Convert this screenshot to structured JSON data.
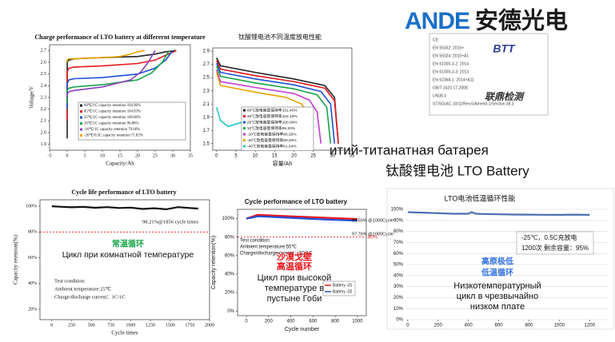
{
  "logo": {
    "latin": "ANDE",
    "chinese": "安德光电"
  },
  "captions": [
    "итий-титанатная батарея",
    "钛酸锂电池 LTO Battery"
  ],
  "certificate": {
    "lines": [
      "CE:",
      "EN 55032: 2015+",
      "EN 55024: 2010+A1",
      "EN 61000-3-2: 2014",
      "EN 61000-3-3: 2013",
      "EN 62368-1: 2014+A11",
      "GB/T 2423.17-2008",
      "UN38.3",
      "ST/SG/AC.10/11/Rev.6/Amend.1/Section 38.3"
    ],
    "mark1": "BTT",
    "mark2": "联鼎检测"
  },
  "chart_data": [
    {
      "type": "line",
      "title": "Charge performance of LTO battery at differernt temperature",
      "xlabel": "Capacity/Ah",
      "ylabel": "Voltage/V",
      "xlim": [
        -5,
        35
      ],
      "xticks": [
        -5,
        0,
        5,
        10,
        15,
        20,
        25,
        30,
        35
      ],
      "ylim": [
        1.85,
        2.75
      ],
      "yticks": [
        1.9,
        {
          "value": 2,
          "label": "2.0"
        },
        2.1,
        2.2,
        2.3,
        2.4,
        2.5,
        2.6,
        2.7
      ],
      "series": [
        {
          "name": "60℃/1C capacity retention 104.96%",
          "color": "#222222",
          "x": [
            0,
            0,
            0.5,
            2,
            10,
            20,
            25,
            28,
            31
          ],
          "values": [
            1.95,
            2.6,
            2.62,
            2.63,
            2.64,
            2.65,
            2.67,
            2.69,
            2.7
          ]
        },
        {
          "name": "45℃/1C capacity retention 104.83%",
          "color": "#e41a1c",
          "x": [
            0,
            0,
            0.5,
            2,
            10,
            20,
            25,
            28,
            31
          ],
          "values": [
            2.1,
            2.52,
            2.55,
            2.56,
            2.57,
            2.59,
            2.62,
            2.66,
            2.7
          ]
        },
        {
          "name": "25℃/1C capacity retention 100.00%",
          "color": "#1f4fd6",
          "x": [
            0,
            0,
            0.5,
            2,
            10,
            20,
            25,
            28,
            30
          ],
          "values": [
            2.2,
            2.42,
            2.45,
            2.46,
            2.47,
            2.5,
            2.55,
            2.62,
            2.7
          ]
        },
        {
          "name": "10℃/1C capacity retention 96.88%",
          "color": "#19a34a",
          "x": [
            0,
            0,
            0.5,
            2,
            10,
            20,
            24,
            27,
            29
          ],
          "values": [
            2.25,
            2.36,
            2.38,
            2.39,
            2.41,
            2.45,
            2.51,
            2.6,
            2.7
          ]
        },
        {
          "name": "-10℃/1C capacity retention 79.66%",
          "color": "#8b3fbf",
          "x": [
            0,
            0,
            0.5,
            2,
            10,
            18,
            21,
            23,
            25
          ],
          "values": [
            2.3,
            2.33,
            2.35,
            2.36,
            2.39,
            2.45,
            2.52,
            2.6,
            2.7
          ]
        },
        {
          "name": "-20℃/0.5C capacity retention 71.82%",
          "color": "#e6a400",
          "x": [
            0,
            0,
            0.5,
            2,
            10,
            15,
            18,
            20,
            22
          ],
          "values": [
            2.6,
            2.62,
            2.63,
            2.63,
            2.64,
            2.65,
            2.67,
            2.69,
            2.7
          ]
        }
      ]
    },
    {
      "type": "line",
      "title": "钛酸锂电池不同温度放电性能",
      "xlabel": "容量/Ah",
      "xlim": [
        -1,
        35
      ],
      "xticks": [
        0,
        5,
        10,
        15,
        20,
        25,
        30,
        35
      ],
      "ylim": [
        1.4,
        2.95
      ],
      "yticks": [
        1.5,
        1.7,
        1.9,
        2.1,
        2.3,
        2.5,
        2.7,
        2.9
      ],
      "series": [
        {
          "name": "60℃放电容量保持率101.40%",
          "color": "#222222",
          "x": [
            0,
            1,
            10,
            20,
            28,
            30.5,
            31.5
          ],
          "values": [
            2.8,
            2.68,
            2.58,
            2.48,
            2.38,
            2.2,
            1.5
          ]
        },
        {
          "name": "45℃放电容量保持率102.10%",
          "color": "#e41a1c",
          "x": [
            0,
            1,
            10,
            20,
            28,
            30.5,
            31.5
          ],
          "values": [
            2.76,
            2.63,
            2.53,
            2.44,
            2.34,
            2.15,
            1.5
          ]
        },
        {
          "name": "25℃放电容量保持率100.00%",
          "color": "#1f4fd6",
          "x": [
            0,
            1,
            10,
            20,
            27,
            29.5,
            30.5
          ],
          "values": [
            2.72,
            2.58,
            2.48,
            2.39,
            2.29,
            2.1,
            1.5
          ]
        },
        {
          "name": "10℃放电容量保持率95.20%",
          "color": "#19a34a",
          "x": [
            0,
            1,
            10,
            20,
            26,
            28.5,
            29.5
          ],
          "values": [
            2.68,
            2.52,
            2.42,
            2.33,
            2.24,
            2.05,
            1.5
          ]
        },
        {
          "name": "-10℃放电容量保持率86.20%",
          "color": "#c03ad0",
          "x": [
            0,
            1,
            10,
            20,
            24,
            26,
            27
          ],
          "values": [
            2.62,
            2.44,
            2.35,
            2.26,
            2.16,
            1.98,
            1.5
          ]
        },
        {
          "name": "-20℃放电容量保持率80.20%",
          "color": "#e6a400",
          "x": [
            0,
            1,
            10,
            18,
            22,
            24,
            25
          ],
          "values": [
            2.58,
            2.38,
            2.28,
            2.2,
            2.1,
            1.92,
            1.5
          ]
        },
        {
          "name": "-40℃放电容量保持率61.54%",
          "color": "#27c4c9",
          "x": [
            0,
            1,
            3,
            8,
            14,
            18,
            19.5,
            20.5
          ],
          "values": [
            2.05,
            1.85,
            1.76,
            1.85,
            1.95,
            2.0,
            1.8,
            1.5
          ]
        }
      ]
    },
    {
      "type": "line",
      "title": "Cycle life performance of LTO battery",
      "xlabel": "Cycle times",
      "ylabel": "Capacity retention(%)",
      "xlim": [
        -150,
        2000
      ],
      "xticks": [
        0,
        250,
        500,
        750,
        1000,
        1250,
        1500,
        1750,
        2000
      ],
      "ylim": [
        12,
        105
      ],
      "yticks": [
        {
          "value": 20,
          "label": "20%"
        },
        {
          "value": 40,
          "label": "40%"
        },
        {
          "value": 60,
          "label": "60%"
        },
        {
          "value": 80,
          "label": "80%"
        },
        {
          "value": 100,
          "label": "100%"
        }
      ],
      "refline": 80,
      "series": [
        {
          "name": "Battery",
          "color": "#111111",
          "x": [
            0,
            100,
            250,
            400,
            550,
            700,
            850,
            1000,
            1150,
            1300,
            1450,
            1600,
            1750,
            1856
          ],
          "values": [
            100,
            99.6,
            99.2,
            99.5,
            98.8,
            99.3,
            98.6,
            98.9,
            97.9,
            98.4,
            97.6,
            99.3,
            98.6,
            98.21
          ]
        }
      ],
      "annotations": [
        {
          "text": "98.21%@1856 cycle times",
          "color": "#111111"
        },
        {
          "text": "Test condition:",
          "color": "#111111"
        },
        {
          "text": "Ambient temperature:25℃",
          "color": "#111111"
        },
        {
          "text": "Charge/discharge current：1C/1C",
          "color": "#111111"
        },
        {
          "text": "常温循环",
          "color": "#1aa64a"
        },
        {
          "text": "Цикл при комнатной температуре",
          "color": "#111111"
        }
      ]
    },
    {
      "type": "line",
      "title": "Cycle performance of LTO battery",
      "xlabel": "Cycle number",
      "ylabel": "Capacity retention(%)",
      "xlim": [
        -80,
        1080
      ],
      "xticks": [
        0,
        200,
        400,
        600,
        800,
        1000
      ],
      "ylim": [
        -5,
        110
      ],
      "yticks": [
        {
          "value": 0,
          "label": "0%"
        },
        {
          "value": 20,
          "label": "20%"
        },
        {
          "value": 40,
          "label": "40%"
        },
        {
          "value": 60,
          "label": "60%"
        },
        {
          "value": 80,
          "label": "80%"
        },
        {
          "value": 100,
          "label": "100%"
        }
      ],
      "refline": {
        "value": 80,
        "label": "80%"
      },
      "legend_boxed": true,
      "series": [
        {
          "name": "Battery -01",
          "color": "#e8151b",
          "x": [
            0,
            50,
            100,
            200,
            400,
            600,
            800,
            1000
          ],
          "values": [
            100,
            102,
            104,
            103.5,
            102.5,
            101.5,
            100.5,
            99.55
          ]
        },
        {
          "name": "Battery -02",
          "color": "#1f4fd6",
          "x": [
            0,
            50,
            100,
            200,
            400,
            600,
            800,
            1000
          ],
          "values": [
            100,
            101,
            102.5,
            102,
            100.8,
            99.6,
            98.6,
            97.76
          ]
        }
      ],
      "annotations": [
        {
          "text": "99.55% @1000Cycle",
          "color": "#111111"
        },
        {
          "text": "97.76% @1000Cycle",
          "color": "#111111"
        },
        {
          "text": "Test condition:",
          "color": "#111111"
        },
        {
          "text": "Ambient temperature:55℃",
          "color": "#111111"
        },
        {
          "text": "Charge/discharge current：1C/1C",
          "color": "#111111"
        },
        {
          "text": "沙漠戈壁",
          "color": "#e8151b"
        },
        {
          "text": "高温循环",
          "color": "#e8151b"
        },
        {
          "text": "Цикл при высокой",
          "color": "#111111"
        },
        {
          "text": "температуре в",
          "color": "#111111"
        },
        {
          "text": "пустыне Гоби",
          "color": "#111111"
        }
      ]
    },
    {
      "type": "line",
      "title": "LTO电池低温循环性能",
      "grid": true,
      "xlim": [
        -10,
        1320
      ],
      "xticks": [
        0,
        200,
        400,
        600,
        800,
        1000,
        1200
      ],
      "ylim": [
        0,
        100
      ],
      "yticks": [
        {
          "value": 0,
          "label": "0%"
        },
        {
          "value": 10,
          "label": "10%"
        },
        {
          "value": 20,
          "label": "20%"
        },
        {
          "value": 30,
          "label": "30%"
        },
        {
          "value": 40,
          "label": "40%"
        },
        {
          "value": 50,
          "label": "50%"
        },
        {
          "value": 60,
          "label": "60%"
        },
        {
          "value": 70,
          "label": "70%"
        },
        {
          "value": 80,
          "label": "80%"
        },
        {
          "value": 90,
          "label": "90%"
        },
        {
          "value": 100,
          "label": "100%"
        }
      ],
      "series": [
        {
          "name": "LTO",
          "color": "#4a6fb0",
          "x": [
            0,
            100,
            200,
            300,
            400,
            420,
            450,
            500,
            600,
            700,
            800,
            900,
            1000,
            1100,
            1200
          ],
          "values": [
            97.5,
            97,
            96.5,
            96,
            96,
            97.5,
            96,
            95.8,
            95.5,
            95.3,
            95.2,
            95.1,
            95,
            95.2,
            95
          ]
        }
      ],
      "annotations": [
        {
          "text": "-25℃，0.5C充放电",
          "color": "#111111"
        },
        {
          "text": "1200次 剩余容量：95%",
          "color": "#111111"
        },
        {
          "text": "高原极低",
          "color": "#2f6fe0"
        },
        {
          "text": "低温循环",
          "color": "#2f6fe0"
        },
        {
          "text": "Низкотемпературный",
          "color": "#111111"
        },
        {
          "text": "цикл в чрезвычайно",
          "color": "#111111"
        },
        {
          "text": "низком плате",
          "color": "#111111"
        }
      ]
    }
  ]
}
